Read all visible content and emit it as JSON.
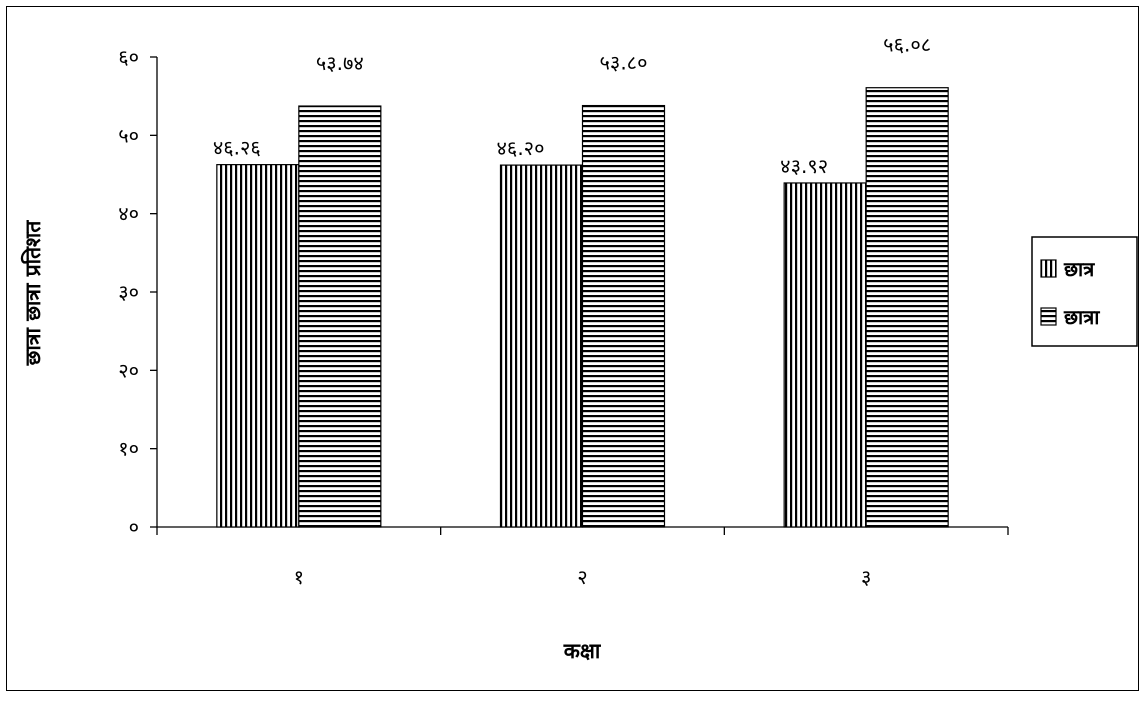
{
  "chart_data": {
    "type": "bar",
    "categories": [
      "१",
      "२",
      "३"
    ],
    "series": [
      {
        "name": "छात्र",
        "values": [
          46.26,
          46.2,
          43.92
        ],
        "value_labels": [
          "४६.२६",
          "४६.२०",
          "४३.९२"
        ],
        "pattern": "vertical-stripes"
      },
      {
        "name": "छात्रा",
        "values": [
          53.74,
          53.8,
          56.08
        ],
        "value_labels": [
          "५३.७४",
          "५३.८०",
          "५६.०८"
        ],
        "pattern": "horizontal-stripes"
      }
    ],
    "title": "",
    "xlabel": "कक्षा",
    "ylabel": "छात्रा छात्रा प्रतिशत",
    "ylim": [
      0,
      60
    ],
    "yticks": [
      0,
      10,
      20,
      30,
      40,
      50,
      60
    ],
    "ytick_labels": [
      "०",
      "१०",
      "२०",
      "३०",
      "४०",
      "५०",
      "६०"
    ],
    "grid": false,
    "legend_position": "right"
  }
}
